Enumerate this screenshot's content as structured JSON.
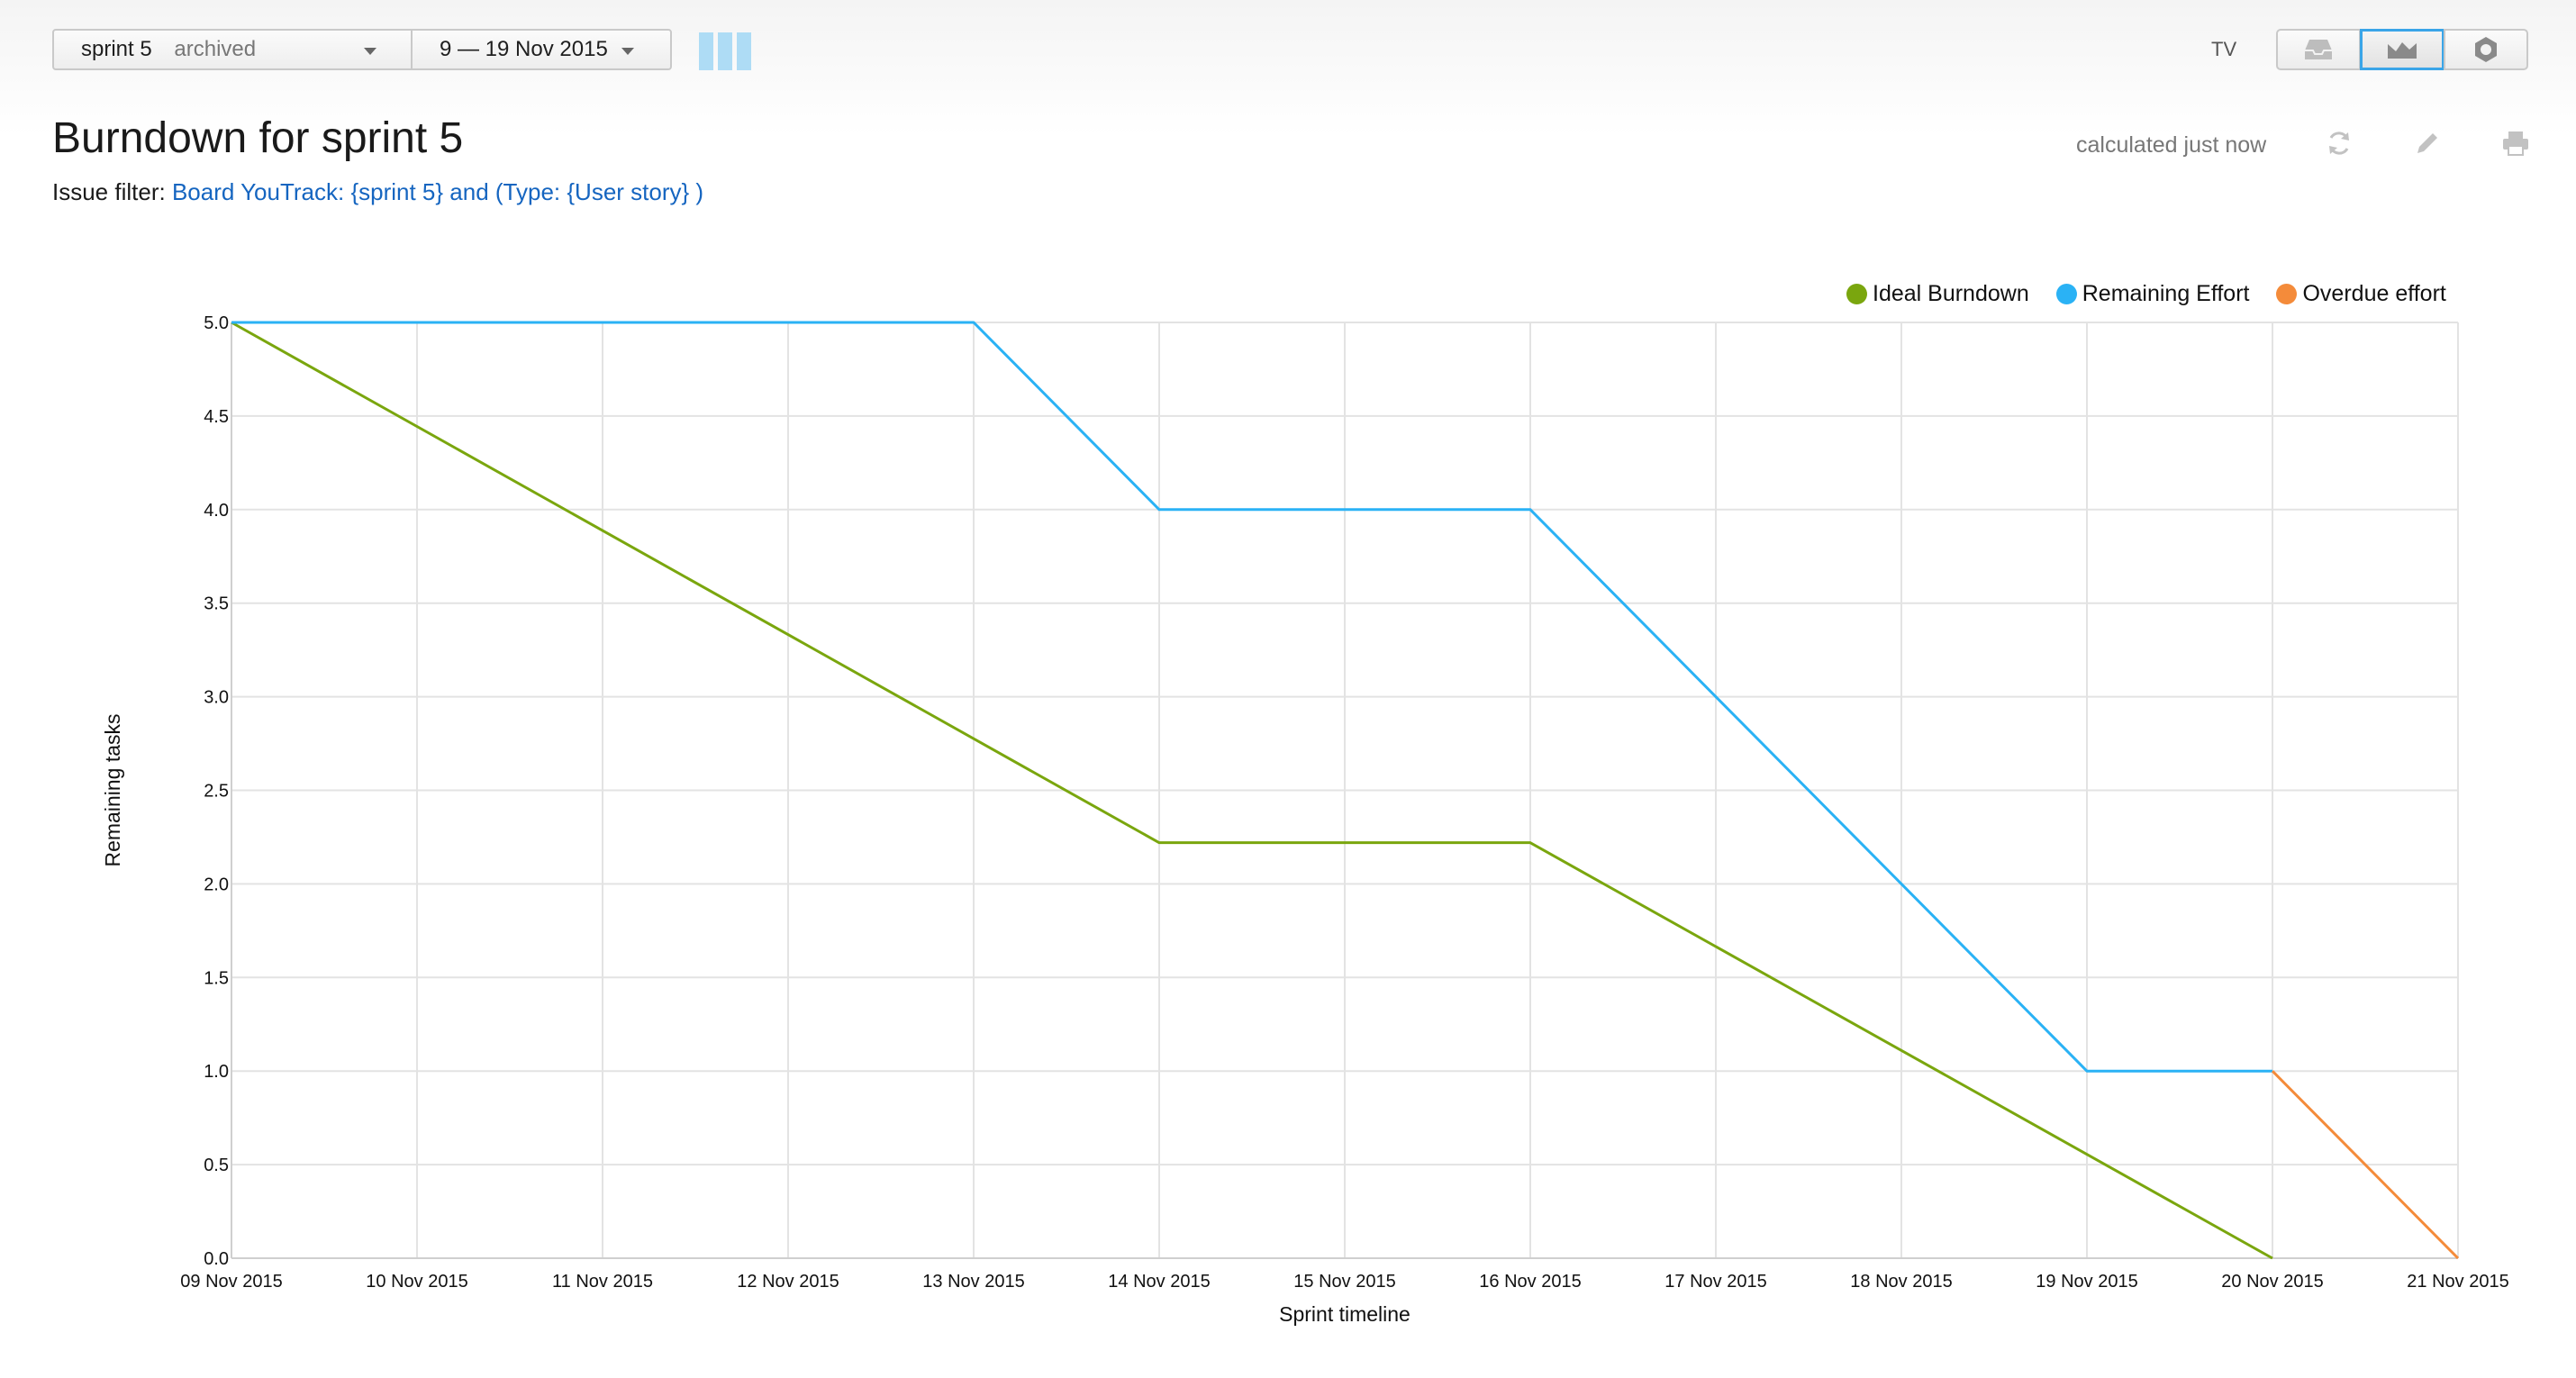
{
  "toolbar": {
    "sprint_name": "sprint 5",
    "sprint_status": "archived",
    "date_range": "9 — 19 Nov 2015",
    "tv_label": "TV",
    "icons": [
      "board-icon",
      "inbox-icon",
      "burndown-chart-icon",
      "settings-icon"
    ]
  },
  "report": {
    "title": "Burndown for sprint 5",
    "filter_label": "Issue filter:",
    "filter_query": "Board YouTrack: {sprint 5} and (Type: {User story} )",
    "calculated": "calculated just now",
    "icons": [
      "refresh-icon",
      "edit-icon",
      "print-icon"
    ]
  },
  "colors": {
    "ideal": "#7aa60e",
    "remaining": "#2ab2f5",
    "overdue": "#f48b3a",
    "link": "#1565c0",
    "active_border": "#3aa5e8"
  },
  "chart_data": {
    "type": "line",
    "title": "",
    "xlabel": "Sprint timeline",
    "ylabel": "Remaining tasks",
    "ylim": [
      0,
      5
    ],
    "yticks": [
      "0.0",
      "0.5",
      "1.0",
      "1.5",
      "2.0",
      "2.5",
      "3.0",
      "3.5",
      "4.0",
      "4.5",
      "5.0"
    ],
    "categories": [
      "09 Nov 2015",
      "10 Nov 2015",
      "11 Nov 2015",
      "12 Nov 2015",
      "13 Nov 2015",
      "14 Nov 2015",
      "15 Nov 2015",
      "16 Nov 2015",
      "17 Nov 2015",
      "18 Nov 2015",
      "19 Nov 2015",
      "20 Nov 2015",
      "21 Nov 2015"
    ],
    "grid": true,
    "legend_position": "top-right",
    "series": [
      {
        "name": "Ideal Burndown",
        "color": "#7aa60e",
        "points": [
          [
            "09 Nov 2015",
            5.0
          ],
          [
            "14 Nov 2015",
            2.22
          ],
          [
            "16 Nov 2015",
            2.22
          ],
          [
            "20 Nov 2015",
            0.0
          ]
        ]
      },
      {
        "name": "Remaining Effort",
        "color": "#2ab2f5",
        "points": [
          [
            "09 Nov 2015",
            5.0
          ],
          [
            "13 Nov 2015",
            5.0
          ],
          [
            "14 Nov 2015",
            4.0
          ],
          [
            "16 Nov 2015",
            4.0
          ],
          [
            "19 Nov 2015",
            1.0
          ],
          [
            "20 Nov 2015",
            1.0
          ]
        ]
      },
      {
        "name": "Overdue effort",
        "color": "#f48b3a",
        "points": [
          [
            "20 Nov 2015",
            1.0
          ],
          [
            "21 Nov 2015",
            0.0
          ]
        ]
      }
    ]
  }
}
